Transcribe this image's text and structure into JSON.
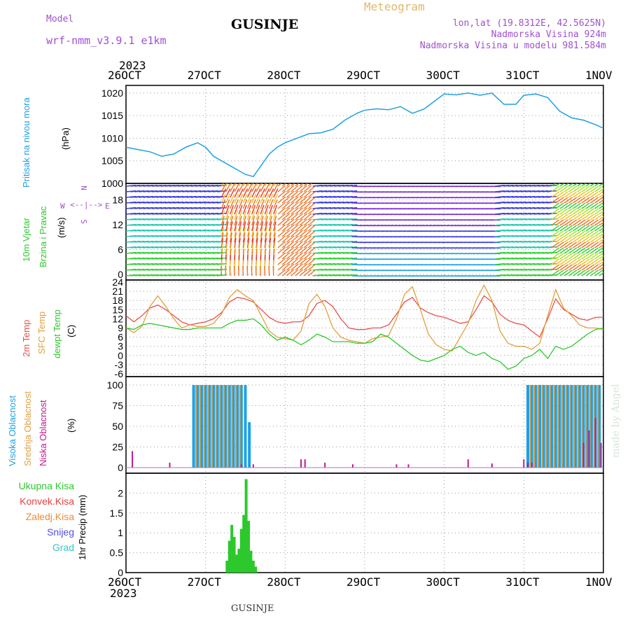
{
  "header": {
    "model_label": "Model",
    "model_name": "wrf-nmm_v3.9.1 e1km",
    "title": "GUSINJE",
    "meteogram_label": "Meteogram",
    "lonlat": "lon,lat (19.8312E, 42.5625N)",
    "altitude": "Nadmorska Visina 924m",
    "model_altitude": "Nadmorska Visina u modelu 981.584m",
    "footer_title": "GUSINJE",
    "watermark": "made by Angel"
  },
  "time_axis": {
    "year_top": "2023",
    "year_bottom": "2023",
    "labels": [
      "26OCT",
      "27OCT",
      "28OCT",
      "29OCT",
      "30OCT",
      "31OCT",
      "1NOV"
    ]
  },
  "panels": {
    "pressure": {
      "label": "Pritisak na nivou mora",
      "unit": "(hPa)"
    },
    "wind": {
      "label1": "10m Vjetar",
      "label2": "Brzina i Pravac",
      "unit": "(m/s)",
      "compass_n": "N",
      "compass_s": "S",
      "compass_w": "W",
      "compass_e": "E"
    },
    "temp": {
      "label_2m": "2m Temp",
      "label_sfc": "SFC Temp",
      "label_dew": "dewpt Temp",
      "unit": "(C)"
    },
    "cloud": {
      "label_high": "Visoka Oblacnost",
      "label_mid": "Srednja Oblacnost",
      "label_low": "Niska Oblacnost",
      "unit": "(%)"
    },
    "precip": {
      "legend": [
        "Ukupna Kisa",
        "Konvek.Kisa",
        "Zaledj.Kisa",
        "Snijeg",
        "Grad"
      ],
      "unit": "1hr Precip (mm)"
    }
  },
  "colors": {
    "pressure": "#1ea0e6",
    "temp2m": "#e8504a",
    "sfc": "#e0a03c",
    "dew": "#2cc82c",
    "cloud_high": "#1ea0e6",
    "cloud_mid": "#e0a03c",
    "cloud_low": "#c01890",
    "precip": "#2cc82c",
    "legend": [
      "#2cc82c",
      "#e84040",
      "#f08a30",
      "#5050e0",
      "#30c8c8"
    ],
    "title_purple": "#a050d0",
    "meteogram_gold": "#e0b870"
  },
  "chart_data": [
    {
      "type": "line",
      "name": "pressure",
      "x_range": [
        0,
        6
      ],
      "ylim": [
        1000,
        1022
      ],
      "yticks": [
        1000,
        1005,
        1010,
        1015,
        1020
      ],
      "x": [
        0,
        0.15,
        0.3,
        0.45,
        0.6,
        0.75,
        0.9,
        1.0,
        1.1,
        1.25,
        1.4,
        1.5,
        1.6,
        1.7,
        1.8,
        1.9,
        2.0,
        2.15,
        2.3,
        2.45,
        2.6,
        2.75,
        2.9,
        3.0,
        3.15,
        3.3,
        3.45,
        3.6,
        3.75,
        3.9,
        4.0,
        4.15,
        4.3,
        4.45,
        4.6,
        4.75,
        4.9,
        5.0,
        5.15,
        5.3,
        5.45,
        5.6,
        5.75,
        5.9,
        6.0
      ],
      "y": [
        1008,
        1007.5,
        1007,
        1006,
        1006.5,
        1008,
        1009,
        1008,
        1006,
        1004.5,
        1003,
        1002,
        1001.5,
        1004,
        1006.5,
        1008,
        1009,
        1010,
        1011,
        1011.2,
        1012,
        1014,
        1015.5,
        1016.2,
        1016.5,
        1016.3,
        1017,
        1015.5,
        1016.5,
        1018.5,
        1019.8,
        1019.6,
        1020,
        1019.5,
        1020,
        1017.5,
        1017.5,
        1019.5,
        1019.8,
        1019,
        1016,
        1014.5,
        1014,
        1013,
        1012.2
      ]
    },
    {
      "type": "line",
      "name": "temperature",
      "x_range": [
        0,
        6
      ],
      "ylim": [
        -6,
        24
      ],
      "yticks": [
        -6,
        -3,
        0,
        3,
        6,
        9,
        12,
        15,
        18,
        21,
        24
      ],
      "x": [
        0,
        0.1,
        0.2,
        0.3,
        0.4,
        0.5,
        0.6,
        0.7,
        0.8,
        0.9,
        1.0,
        1.1,
        1.2,
        1.3,
        1.4,
        1.5,
        1.6,
        1.7,
        1.8,
        1.9,
        2.0,
        2.1,
        2.2,
        2.3,
        2.4,
        2.5,
        2.6,
        2.7,
        2.8,
        2.9,
        3.0,
        3.1,
        3.2,
        3.3,
        3.4,
        3.5,
        3.6,
        3.7,
        3.8,
        3.9,
        4.0,
        4.1,
        4.2,
        4.3,
        4.4,
        4.5,
        4.6,
        4.7,
        4.8,
        4.9,
        5.0,
        5.1,
        5.2,
        5.3,
        5.4,
        5.5,
        5.6,
        5.7,
        5.8,
        5.9,
        6.0
      ],
      "series": [
        {
          "name": "2m Temp",
          "values": [
            13,
            11,
            13,
            15.5,
            16.5,
            15,
            13,
            11,
            10,
            10.5,
            11,
            12,
            14,
            17.5,
            19,
            18.5,
            17.5,
            15,
            12.5,
            11,
            10.5,
            11,
            11,
            13,
            17,
            18,
            16,
            12,
            9,
            8.5,
            8.5,
            9,
            9,
            10,
            13.5,
            17.5,
            19,
            15.5,
            14,
            13,
            12.5,
            11.5,
            10.5,
            11,
            15,
            19.5,
            17.5,
            13.5,
            11.5,
            10.5,
            10,
            8,
            6,
            12,
            18.5,
            15,
            13.5,
            12,
            11.5,
            12.5,
            12.5
          ]
        },
        {
          "name": "SFC Temp",
          "values": [
            9,
            7.5,
            9.5,
            16,
            19.5,
            16,
            12,
            9,
            10,
            9.5,
            9.5,
            10.5,
            13.5,
            19,
            21.5,
            19.5,
            18,
            13,
            8,
            6,
            5.5,
            5,
            8,
            17,
            20,
            16,
            9,
            6,
            5,
            4.5,
            4,
            5.5,
            6,
            6.5,
            12,
            20,
            22.5,
            15,
            7,
            3.5,
            2,
            1.5,
            6,
            10.5,
            18,
            23,
            18,
            8,
            4,
            3,
            3,
            2,
            4,
            13,
            21.5,
            15.5,
            13,
            10,
            9,
            9,
            8.5
          ]
        },
        {
          "name": "dewpt Temp",
          "values": [
            9,
            8.5,
            10,
            10.5,
            10,
            9.5,
            9,
            8.5,
            8.5,
            9,
            9,
            9,
            9,
            10.5,
            11.5,
            11.5,
            12,
            10,
            7,
            5,
            6,
            5,
            3.5,
            5,
            7,
            6,
            4.5,
            4.5,
            4.5,
            4,
            4,
            4.5,
            7,
            6,
            4,
            2,
            0,
            -1.5,
            -2,
            -1,
            0,
            2,
            3,
            1,
            0,
            1,
            -1,
            -2,
            -4.5,
            -3.5,
            -1,
            0,
            2,
            -1,
            3,
            2,
            3,
            5,
            7,
            8.5,
            9
          ]
        }
      ]
    },
    {
      "type": "bar",
      "name": "cloud cover",
      "x_range": [
        0,
        6
      ],
      "ylim": [
        0,
        100
      ],
      "yticks": [
        0,
        25,
        50,
        75,
        100
      ],
      "series": [
        {
          "name": "Visoka Oblacnost",
          "x": [
            0.85,
            0.9,
            0.95,
            1.0,
            1.05,
            1.1,
            1.15,
            1.2,
            1.25,
            1.3,
            1.35,
            1.4,
            1.45,
            1.5,
            1.55,
            5.05,
            5.1,
            5.15,
            5.2,
            5.25,
            5.3,
            5.35,
            5.4,
            5.45,
            5.5,
            5.55,
            5.6,
            5.65,
            5.7,
            5.75,
            5.8,
            5.85,
            5.9,
            5.95
          ],
          "values": [
            100,
            100,
            100,
            100,
            100,
            100,
            100,
            100,
            100,
            100,
            100,
            100,
            100,
            100,
            55,
            100,
            100,
            100,
            100,
            100,
            100,
            100,
            100,
            100,
            100,
            100,
            100,
            100,
            100,
            100,
            100,
            100,
            100,
            100
          ]
        },
        {
          "name": "Srednja Oblacnost",
          "x": [
            0.88,
            0.93,
            0.98,
            1.03,
            1.08,
            1.13,
            1.18,
            1.23,
            1.28,
            1.33,
            1.38,
            1.43,
            5.08,
            5.13,
            5.18,
            5.23,
            5.28,
            5.33,
            5.38,
            5.43,
            5.48,
            5.53,
            5.58,
            5.63,
            5.68,
            5.73,
            5.78,
            5.83,
            5.88,
            5.93
          ],
          "values": [
            100,
            100,
            100,
            100,
            100,
            100,
            100,
            100,
            100,
            100,
            100,
            100,
            100,
            100,
            100,
            100,
            100,
            100,
            100,
            100,
            100,
            100,
            100,
            100,
            100,
            100,
            100,
            100,
            100,
            100
          ]
        },
        {
          "name": "Niska Oblacnost",
          "x": [
            0.08,
            0.55,
            1.45,
            1.6,
            2.2,
            2.25,
            2.5,
            2.85,
            3.4,
            3.55,
            4.3,
            4.6,
            5.0,
            5.05,
            5.1,
            5.75,
            5.82,
            5.9,
            5.97
          ],
          "values": [
            20,
            6,
            4,
            4,
            10,
            10,
            6,
            4,
            4,
            4,
            10,
            5,
            10,
            6,
            6,
            30,
            45,
            60,
            30
          ]
        }
      ]
    },
    {
      "type": "bar",
      "name": "1hr precipitation",
      "x_range": [
        0,
        6
      ],
      "ylim": [
        0,
        2.5
      ],
      "yticks": [
        0,
        0.5,
        1,
        1.5,
        2
      ],
      "ytick_labels": [
        "0",
        "0.5",
        "1",
        "1.5",
        "2"
      ],
      "x": [
        1.27,
        1.3,
        1.33,
        1.36,
        1.39,
        1.42,
        1.45,
        1.48,
        1.51,
        1.54,
        1.57,
        1.6,
        1.63
      ],
      "values": [
        0.3,
        0.8,
        1.2,
        0.9,
        0.45,
        0.6,
        1.1,
        1.45,
        2.35,
        1.3,
        0.55,
        0.3,
        0.15
      ]
    }
  ]
}
